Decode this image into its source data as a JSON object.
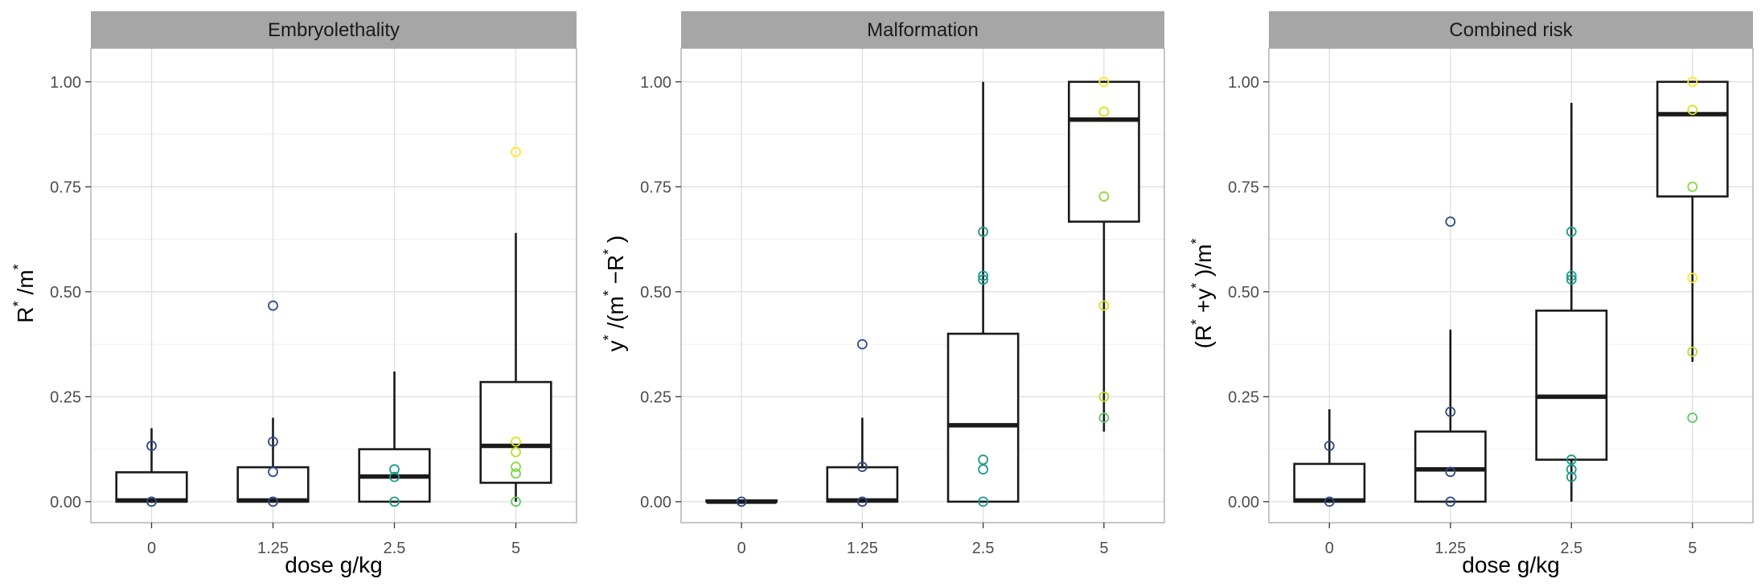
{
  "chart_data": [
    {
      "type": "boxplot",
      "facet_title": "Embryolethality",
      "xlabel": "dose g/kg",
      "ylabel_parts": [
        [
          "R",
          ""
        ],
        [
          "*",
          "sup"
        ],
        [
          " /m",
          ""
        ],
        [
          "*",
          "sup"
        ]
      ],
      "categories": [
        "0",
        "1.25",
        "2.5",
        "5"
      ],
      "ylim": [
        -0.05,
        1.08
      ],
      "yticks": [
        0,
        0.25,
        0.5,
        0.75,
        1
      ],
      "ytick_labels": [
        "0.00",
        "0.25",
        "0.50",
        "0.75",
        "1.00"
      ],
      "grid": true,
      "boxes": [
        {
          "lower_whisker": 0,
          "q1": 0,
          "median": 0.003,
          "q3": 0.07,
          "upper_whisker": 0.175
        },
        {
          "lower_whisker": 0,
          "q1": 0,
          "median": 0.003,
          "q3": 0.082,
          "upper_whisker": 0.2
        },
        {
          "lower_whisker": 0,
          "q1": 0,
          "median": 0.06,
          "q3": 0.125,
          "upper_whisker": 0.31
        },
        {
          "lower_whisker": 0,
          "q1": 0.045,
          "median": 0.133,
          "q3": 0.285,
          "upper_whisker": 0.64
        }
      ],
      "points": [
        {
          "x": "0",
          "y": 0.133,
          "color": "#2f4a86"
        },
        {
          "x": "0",
          "y": 0,
          "color": "#2f4a86"
        },
        {
          "x": "1.25",
          "y": 0.467,
          "color": "#2f4a86"
        },
        {
          "x": "1.25",
          "y": 0.143,
          "color": "#2f4a86"
        },
        {
          "x": "1.25",
          "y": 0.071,
          "color": "#2f4a86"
        },
        {
          "x": "1.25",
          "y": 0,
          "color": "#2f4a86"
        },
        {
          "x": "2.5",
          "y": 0.077,
          "color": "#1f9a8a"
        },
        {
          "x": "2.5",
          "y": 0.059,
          "color": "#1f9a8a"
        },
        {
          "x": "2.5",
          "y": 0,
          "color": "#1f9a8a"
        },
        {
          "x": "5",
          "y": 0.833,
          "color": "#fde725"
        },
        {
          "x": "5",
          "y": 0.143,
          "color": "#d8e219"
        },
        {
          "x": "5",
          "y": 0.118,
          "color": "#b5de2b"
        },
        {
          "x": "5",
          "y": 0.083,
          "color": "#8fd744"
        },
        {
          "x": "5",
          "y": 0.067,
          "color": "#7ad151"
        },
        {
          "x": "5",
          "y": 0,
          "color": "#5ec962"
        }
      ]
    },
    {
      "type": "boxplot",
      "facet_title": "Malformation",
      "xlabel": "",
      "ylabel_parts": [
        [
          "y",
          ""
        ],
        [
          "*",
          "sup"
        ],
        [
          " /(m",
          ""
        ],
        [
          "*",
          "sup"
        ],
        [
          " −R",
          ""
        ],
        [
          "*",
          "sup"
        ],
        [
          " )",
          ""
        ]
      ],
      "categories": [
        "0",
        "1.25",
        "2.5",
        "5"
      ],
      "ylim": [
        -0.05,
        1.08
      ],
      "yticks": [
        0,
        0.25,
        0.5,
        0.75,
        1
      ],
      "ytick_labels": [
        "0.00",
        "0.25",
        "0.50",
        "0.75",
        "1.00"
      ],
      "grid": true,
      "boxes": [
        {
          "lower_whisker": 0,
          "q1": 0,
          "median": 0,
          "q3": 0.003,
          "upper_whisker": 0.003
        },
        {
          "lower_whisker": 0,
          "q1": 0,
          "median": 0.003,
          "q3": 0.082,
          "upper_whisker": 0.2
        },
        {
          "lower_whisker": 0,
          "q1": 0,
          "median": 0.182,
          "q3": 0.4,
          "upper_whisker": 1.0
        },
        {
          "lower_whisker": 0.167,
          "q1": 0.667,
          "median": 0.91,
          "q3": 1.0,
          "upper_whisker": 1.0
        }
      ],
      "points": [
        {
          "x": "0",
          "y": 0,
          "color": "#2f4a86"
        },
        {
          "x": "1.25",
          "y": 0.375,
          "color": "#2f4a86"
        },
        {
          "x": "1.25",
          "y": 0.083,
          "color": "#2f4a86"
        },
        {
          "x": "1.25",
          "y": 0,
          "color": "#2f4a86"
        },
        {
          "x": "2.5",
          "y": 0.643,
          "color": "#1f9a8a"
        },
        {
          "x": "2.5",
          "y": 0.538,
          "color": "#1f9a8a"
        },
        {
          "x": "2.5",
          "y": 0.529,
          "color": "#1f9a8a"
        },
        {
          "x": "2.5",
          "y": 0.1,
          "color": "#1f9a8a"
        },
        {
          "x": "2.5",
          "y": 0.077,
          "color": "#1f9a8a"
        },
        {
          "x": "2.5",
          "y": 0,
          "color": "#1f9a8a"
        },
        {
          "x": "5",
          "y": 1.0,
          "color": "#fde725"
        },
        {
          "x": "5",
          "y": 0.929,
          "color": "#d8e219"
        },
        {
          "x": "5",
          "y": 0.727,
          "color": "#8fd744"
        },
        {
          "x": "5",
          "y": 0.467,
          "color": "#d8e219"
        },
        {
          "x": "5",
          "y": 0.25,
          "color": "#b5de2b"
        },
        {
          "x": "5",
          "y": 0.2,
          "color": "#5ec962"
        }
      ]
    },
    {
      "type": "boxplot",
      "facet_title": "Combined risk",
      "xlabel": "dose g/kg",
      "ylabel_parts": [
        [
          "(R",
          ""
        ],
        [
          "*",
          "sup"
        ],
        [
          " +y",
          ""
        ],
        [
          "*",
          "sup"
        ],
        [
          " )/m",
          ""
        ],
        [
          "*",
          "sup"
        ]
      ],
      "categories": [
        "0",
        "1.25",
        "2.5",
        "5"
      ],
      "ylim": [
        -0.05,
        1.08
      ],
      "yticks": [
        0,
        0.25,
        0.5,
        0.75,
        1
      ],
      "ytick_labels": [
        "0.00",
        "0.25",
        "0.50",
        "0.75",
        "1.00"
      ],
      "grid": true,
      "boxes": [
        {
          "lower_whisker": 0,
          "q1": 0,
          "median": 0.003,
          "q3": 0.09,
          "upper_whisker": 0.22
        },
        {
          "lower_whisker": 0,
          "q1": 0,
          "median": 0.077,
          "q3": 0.167,
          "upper_whisker": 0.41
        },
        {
          "lower_whisker": 0,
          "q1": 0.1,
          "median": 0.25,
          "q3": 0.455,
          "upper_whisker": 0.95
        },
        {
          "lower_whisker": 0.333,
          "q1": 0.727,
          "median": 0.923,
          "q3": 1.0,
          "upper_whisker": 1.0
        }
      ],
      "points": [
        {
          "x": "0",
          "y": 0.133,
          "color": "#2f4a86"
        },
        {
          "x": "0",
          "y": 0,
          "color": "#2f4a86"
        },
        {
          "x": "1.25",
          "y": 0.667,
          "color": "#2f4a86"
        },
        {
          "x": "1.25",
          "y": 0.214,
          "color": "#2f4a86"
        },
        {
          "x": "1.25",
          "y": 0.071,
          "color": "#2f4a86"
        },
        {
          "x": "1.25",
          "y": 0,
          "color": "#2f4a86"
        },
        {
          "x": "2.5",
          "y": 0.643,
          "color": "#1f9a8a"
        },
        {
          "x": "2.5",
          "y": 0.538,
          "color": "#1f9a8a"
        },
        {
          "x": "2.5",
          "y": 0.529,
          "color": "#1f9a8a"
        },
        {
          "x": "2.5",
          "y": 0.1,
          "color": "#1f9a8a"
        },
        {
          "x": "2.5",
          "y": 0.077,
          "color": "#1f9a8a"
        },
        {
          "x": "2.5",
          "y": 0.059,
          "color": "#1f9a8a"
        },
        {
          "x": "5",
          "y": 1.0,
          "color": "#fde725"
        },
        {
          "x": "5",
          "y": 0.933,
          "color": "#d8e219"
        },
        {
          "x": "5",
          "y": 0.75,
          "color": "#8fd744"
        },
        {
          "x": "5",
          "y": 0.533,
          "color": "#fde725"
        },
        {
          "x": "5",
          "y": 0.357,
          "color": "#b5de2b"
        },
        {
          "x": "5",
          "y": 0.2,
          "color": "#5ec962"
        }
      ]
    }
  ],
  "colors": {
    "strip_fill": "#a6a6a6",
    "panel_border": "#b3b3b3",
    "grid_major": "#dedede",
    "grid_minor": "#eeeeee",
    "box_line": "#1a1a1a"
  }
}
